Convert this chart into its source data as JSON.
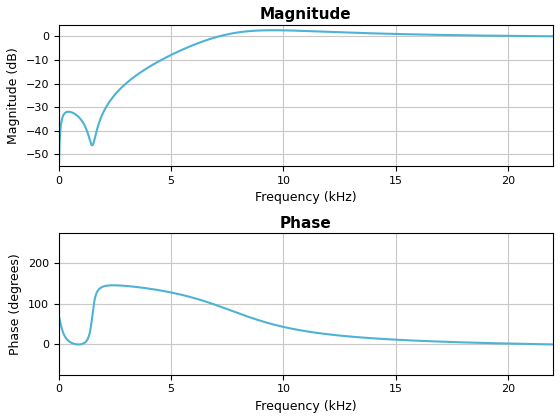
{
  "title_magnitude": "Magnitude",
  "title_phase": "Phase",
  "xlabel": "Frequency (kHz)",
  "ylabel_magnitude": "Magnitude (dB)",
  "ylabel_phase": "Phase (degrees)",
  "xlim": [
    0,
    22
  ],
  "mag_ylim": [
    -55,
    5
  ],
  "phase_ylim": [
    -75,
    275
  ],
  "line_color": "#4db3d4",
  "line_width": 1.5,
  "background_color": "#ffffff",
  "grid_color": "#c8c8c8",
  "xticks": [
    0,
    5,
    10,
    15,
    20
  ],
  "mag_yticks": [
    0,
    -10,
    -20,
    -30,
    -40,
    -50
  ],
  "phase_yticks": [
    0,
    100,
    200
  ],
  "fig_width": 5.6,
  "fig_height": 4.2,
  "dpi": 100
}
